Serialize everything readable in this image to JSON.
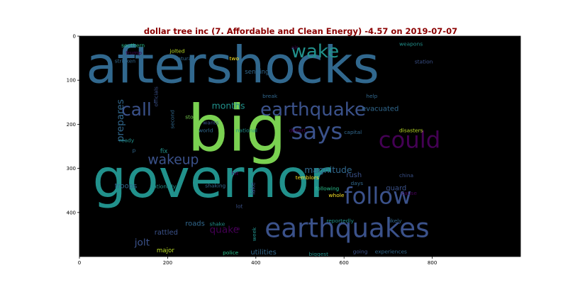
{
  "chart_data": {
    "type": "wordcloud",
    "title": "dollar tree inc (7. Affordable and Clean Energy) -4.57 on 2019-07-07",
    "xlim": [
      0,
      1000
    ],
    "ylim": [
      500,
      0
    ],
    "xticks": [
      0,
      200,
      400,
      600,
      800
    ],
    "yticks": [
      0,
      100,
      200,
      300,
      400
    ],
    "words": [
      {
        "text": "aftershocks",
        "x": 15,
        "y": 105,
        "size": 115,
        "color": "#31688e",
        "rot": 0
      },
      {
        "text": "big",
        "x": 245,
        "y": 260,
        "size": 145,
        "color": "#7ad151",
        "rot": 0
      },
      {
        "text": "governor",
        "x": 30,
        "y": 365,
        "size": 120,
        "color": "#21918c",
        "rot": 0
      },
      {
        "text": "earthquakes",
        "x": 420,
        "y": 456,
        "size": 60,
        "color": "#3b528b",
        "rot": 0
      },
      {
        "text": "follow",
        "x": 600,
        "y": 380,
        "size": 52,
        "color": "#3b528b",
        "rot": 0
      },
      {
        "text": "could",
        "x": 678,
        "y": 253,
        "size": 52,
        "color": "#440154",
        "rot": 0
      },
      {
        "text": "says",
        "x": 480,
        "y": 233,
        "size": 52,
        "color": "#3b528b",
        "rot": 0
      },
      {
        "text": "earthquake",
        "x": 410,
        "y": 180,
        "size": 42,
        "color": "#3b528b",
        "rot": 0
      },
      {
        "text": "wake",
        "x": 480,
        "y": 48,
        "size": 42,
        "color": "#21918c",
        "rot": 0
      },
      {
        "text": "call",
        "x": 95,
        "y": 180,
        "size": 40,
        "color": "#3b528b",
        "rot": 0
      },
      {
        "text": "wakeup",
        "x": 155,
        "y": 290,
        "size": 30,
        "color": "#3b528b",
        "rot": 0
      },
      {
        "text": "prepares",
        "x": 100,
        "y": 240,
        "size": 22,
        "color": "#31688e",
        "rot": -90
      },
      {
        "text": "months",
        "x": 300,
        "y": 165,
        "size": 20,
        "color": "#21918c",
        "rot": 0
      },
      {
        "text": "magnitude",
        "x": 510,
        "y": 310,
        "size": 20,
        "color": "#31688e",
        "rot": 0
      },
      {
        "text": "quake",
        "x": 295,
        "y": 446,
        "size": 22,
        "color": "#440154",
        "rot": 0
      },
      {
        "text": "jolt",
        "x": 125,
        "y": 475,
        "size": 22,
        "color": "#3b528b",
        "rot": 0
      },
      {
        "text": "troops",
        "x": 80,
        "y": 345,
        "size": 16,
        "color": "#31688e",
        "rot": 0
      },
      {
        "text": "guard",
        "x": 695,
        "y": 350,
        "size": 16,
        "color": "#3b528b",
        "rot": 0
      },
      {
        "text": "rush",
        "x": 605,
        "y": 320,
        "size": 16,
        "color": "#3b528b",
        "rot": 0
      },
      {
        "text": "evacuated",
        "x": 640,
        "y": 170,
        "size": 16,
        "color": "#31688e",
        "rot": 0
      },
      {
        "text": "rattled",
        "x": 170,
        "y": 450,
        "size": 16,
        "color": "#3b528b",
        "rot": 0
      },
      {
        "text": "utilities",
        "x": 388,
        "y": 495,
        "size": 16,
        "color": "#31688e",
        "rot": 0
      },
      {
        "text": "roads",
        "x": 240,
        "y": 430,
        "size": 16,
        "color": "#31688e",
        "rot": 0
      },
      {
        "text": "major",
        "x": 175,
        "y": 490,
        "size": 14,
        "color": "#bddf26",
        "rot": 0
      },
      {
        "text": "sending",
        "x": 375,
        "y": 85,
        "size": 14,
        "color": "#31688e",
        "rot": 0
      },
      {
        "text": "fix",
        "x": 183,
        "y": 265,
        "size": 14,
        "color": "#21918c",
        "rot": 0
      },
      {
        "text": "lake",
        "x": 398,
        "y": 360,
        "size": 14,
        "color": "#3b528b",
        "rot": -90
      },
      {
        "text": "temblors",
        "x": 490,
        "y": 325,
        "size": 12,
        "color": "#fde725",
        "rot": 0
      },
      {
        "text": "disasters",
        "x": 725,
        "y": 218,
        "size": 12,
        "color": "#bddf26",
        "rot": 0
      },
      {
        "text": "following",
        "x": 535,
        "y": 350,
        "size": 12,
        "color": "#2ac48f",
        "rot": 0
      },
      {
        "text": "whole",
        "x": 565,
        "y": 365,
        "size": 12,
        "color": "#fde725",
        "rot": 0
      },
      {
        "text": "story",
        "x": 240,
        "y": 187,
        "size": 12,
        "color": "#7ad151",
        "rot": 0
      },
      {
        "text": "wants",
        "x": 280,
        "y": 200,
        "size": 12,
        "color": "#3b528b",
        "rot": 0
      },
      {
        "text": "world",
        "x": 270,
        "y": 218,
        "size": 12,
        "color": "#31688e",
        "rot": 0
      },
      {
        "text": "national",
        "x": 355,
        "y": 218,
        "size": 12,
        "color": "#21918c",
        "rot": 0
      },
      {
        "text": "desert",
        "x": 475,
        "y": 218,
        "size": 12,
        "color": "#440154",
        "rot": 0
      },
      {
        "text": "capital",
        "x": 600,
        "y": 222,
        "size": 12,
        "color": "#31688e",
        "rot": 0
      },
      {
        "text": "ready",
        "x": 90,
        "y": 240,
        "size": 12,
        "color": "#21918c",
        "rot": 0
      },
      {
        "text": "hit",
        "x": 345,
        "y": 315,
        "size": 12,
        "color": "#440154",
        "rot": 0
      },
      {
        "text": "shaking",
        "x": 285,
        "y": 343,
        "size": 12,
        "color": "#31688e",
        "rot": 0
      },
      {
        "text": "nationally",
        "x": 160,
        "y": 345,
        "size": 12,
        "color": "#21918c",
        "rot": 0
      },
      {
        "text": "days",
        "x": 615,
        "y": 338,
        "size": 12,
        "color": "#31688e",
        "rot": 0
      },
      {
        "text": "china",
        "x": 725,
        "y": 320,
        "size": 12,
        "color": "#3b528b",
        "rot": 0
      },
      {
        "text": "cause",
        "x": 730,
        "y": 360,
        "size": 12,
        "color": "#440154",
        "rot": 0
      },
      {
        "text": "lot",
        "x": 355,
        "y": 390,
        "size": 12,
        "color": "#3b528b",
        "rot": 0
      },
      {
        "text": "reportedly",
        "x": 560,
        "y": 423,
        "size": 12,
        "color": "#21918c",
        "rot": 0
      },
      {
        "text": "likely",
        "x": 700,
        "y": 423,
        "size": 12,
        "color": "#31688e",
        "rot": 0
      },
      {
        "text": "shake",
        "x": 295,
        "y": 430,
        "size": 12,
        "color": "#21918c",
        "rot": 0
      },
      {
        "text": "ca",
        "x": 350,
        "y": 440,
        "size": 12,
        "color": "#440154",
        "rot": 0
      },
      {
        "text": "week",
        "x": 400,
        "y": 465,
        "size": 12,
        "color": "#21918c",
        "rot": -90
      },
      {
        "text": "police",
        "x": 325,
        "y": 495,
        "size": 12,
        "color": "#2ac48f",
        "rot": 0
      },
      {
        "text": "biggest",
        "x": 520,
        "y": 498,
        "size": 12,
        "color": "#21918c",
        "rot": 0
      },
      {
        "text": "going",
        "x": 620,
        "y": 493,
        "size": 12,
        "color": "#3b528b",
        "rot": 0
      },
      {
        "text": "experiences",
        "x": 670,
        "y": 493,
        "size": 12,
        "color": "#31688e",
        "rot": 0
      },
      {
        "text": "southern",
        "x": 95,
        "y": 25,
        "size": 12,
        "color": "#2ac48f",
        "rot": 0
      },
      {
        "text": "trump",
        "x": 105,
        "y": 42,
        "size": 12,
        "color": "#440154",
        "rot": 0
      },
      {
        "text": "stricken",
        "x": 80,
        "y": 60,
        "size": 12,
        "color": "#31688e",
        "rot": 0
      },
      {
        "text": "jolted",
        "x": 205,
        "y": 38,
        "size": 12,
        "color": "#bddf26",
        "rot": 0
      },
      {
        "text": "natural",
        "x": 215,
        "y": 55,
        "size": 12,
        "color": "#31688e",
        "rot": 0
      },
      {
        "text": "two",
        "x": 340,
        "y": 55,
        "size": 12,
        "color": "#fde725",
        "rot": 0
      },
      {
        "text": "air",
        "x": 480,
        "y": 30,
        "size": 12,
        "color": "#440154",
        "rot": 0
      },
      {
        "text": "weapons",
        "x": 725,
        "y": 22,
        "size": 12,
        "color": "#21918c",
        "rot": 0
      },
      {
        "text": "station",
        "x": 760,
        "y": 62,
        "size": 12,
        "color": "#3b528b",
        "rot": 0
      },
      {
        "text": "help",
        "x": 650,
        "y": 140,
        "size": 12,
        "color": "#31688e",
        "rot": 0
      },
      {
        "text": "break",
        "x": 415,
        "y": 140,
        "size": 12,
        "color": "#31688e",
        "rot": 0
      },
      {
        "text": "officials",
        "x": 178,
        "y": 160,
        "size": 12,
        "color": "#3b528b",
        "rot": -90
      },
      {
        "text": "second",
        "x": 215,
        "y": 210,
        "size": 12,
        "color": "#31688e",
        "rot": -90
      },
      {
        "text": "p",
        "x": 120,
        "y": 263,
        "size": 12,
        "color": "#31688e",
        "rot": 0
      }
    ]
  }
}
